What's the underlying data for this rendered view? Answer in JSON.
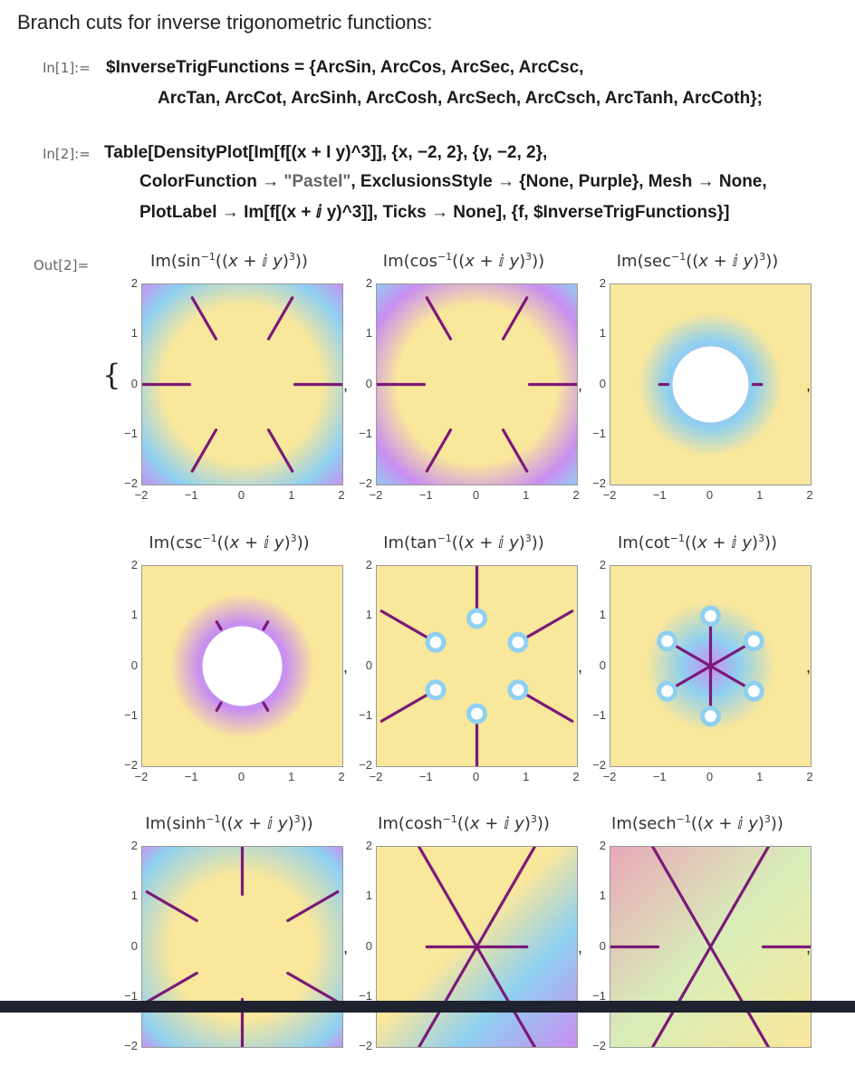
{
  "heading": "Branch cuts for inverse trigonometric functions:",
  "cells": {
    "in1_label": "In[1]:=",
    "in1_line1": "$InverseTrigFunctions = {ArcSin, ArcCos, ArcSec, ArcCsc,",
    "in1_line2": "ArcTan, ArcCot, ArcSinh, ArcCosh, ArcSech, ArcCsch, ArcTanh, ArcCoth};",
    "in2_label": "In[2]:=",
    "in2_line1": "Table[DensityPlot[Im[f[(x + I y)^3]], {x, −2, 2}, {y, −2, 2},",
    "in2_line2a": "ColorFunction → ",
    "in2_line2_string": "\"Pastel\"",
    "in2_line2b": ", ExclusionsStyle → {None, Purple}, Mesh → None,",
    "in2_line3": "PlotLabel → Im[f[(x + ⅈ y)^3]], Ticks → None], {f, $InverseTrigFunctions}]",
    "out2_label": "Out[2]=",
    "brace": "{",
    "comma": ","
  },
  "axis": {
    "yticks": [
      "2",
      "1",
      "0",
      "−1",
      "−2"
    ],
    "xticks": [
      "−2",
      "−1",
      "0",
      "1",
      "2"
    ]
  },
  "plots": [
    {
      "fn": "sin"
    },
    {
      "fn": "cos"
    },
    {
      "fn": "sec"
    },
    {
      "fn": "csc"
    },
    {
      "fn": "tan"
    },
    {
      "fn": "cot"
    },
    {
      "fn": "sinh"
    },
    {
      "fn": "cosh"
    },
    {
      "fn": "sech"
    }
  ],
  "colors": {
    "cut": "#7a1a78",
    "pastel_yellow": "#f9e79c",
    "pastel_blue": "#8fd0f0",
    "pastel_purple": "#c98ef0",
    "pastel_pink": "#e8a8b8",
    "pastel_green": "#d8edb8"
  }
}
